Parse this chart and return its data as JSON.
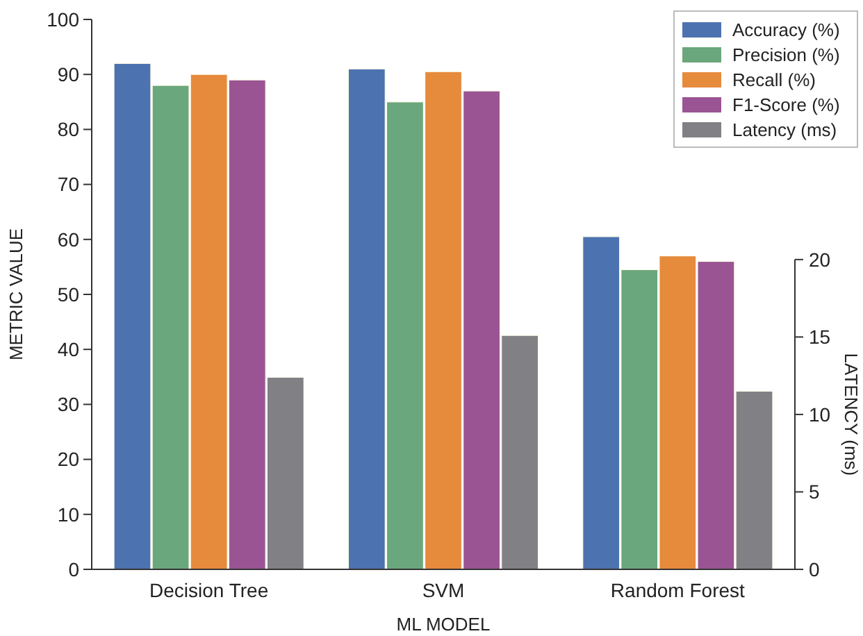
{
  "chart_data": {
    "type": "bar",
    "xlabel": "ML MODEL",
    "ylabel": "METRIC VALUE",
    "y2label": "LATENCY (ms)",
    "categories": [
      "Decision Tree",
      "SVM",
      "Random Forest"
    ],
    "series": [
      {
        "name": "Accuracy (%)",
        "color": "#4c72b0",
        "values": [
          92,
          91,
          60.5
        ]
      },
      {
        "name": "Precision (%)",
        "color": "#6aa77c",
        "values": [
          88,
          85,
          54.5
        ]
      },
      {
        "name": "Recall (%)",
        "color": "#e68a3c",
        "values": [
          90,
          90.5,
          57
        ]
      },
      {
        "name": "F1-Score (%)",
        "color": "#9a5494",
        "values": [
          89,
          87,
          56
        ]
      },
      {
        "name": "Latency (ms)",
        "color": "#808085",
        "values": [
          12.4,
          15.1,
          11.5
        ],
        "axis": "y2"
      }
    ],
    "ylim": [
      0,
      100
    ],
    "yticks": [
      0,
      10,
      20,
      30,
      40,
      50,
      60,
      70,
      80,
      90,
      100
    ],
    "y2lim": [
      0,
      35.5
    ],
    "y2ticks": [
      0,
      5,
      10,
      15,
      20
    ],
    "legend": "top right",
    "grid": false
  }
}
